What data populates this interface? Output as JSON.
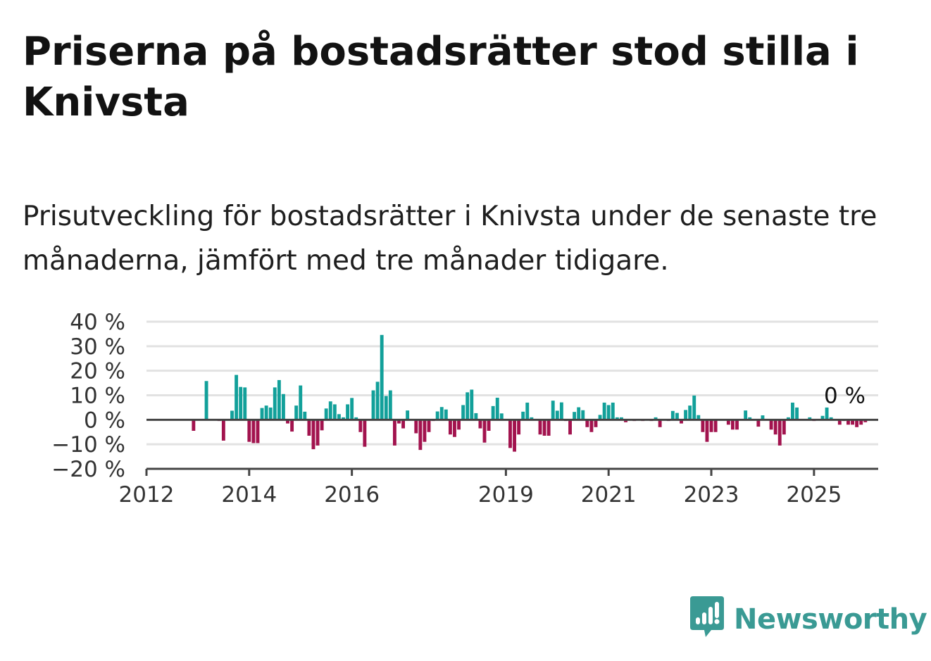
{
  "title": "Priserna på bostadsrätter stod stilla i Knivsta",
  "subtitle": "Prisutveckling för bostadsrätter i Knivsta under de senaste tre månaderna, jämfört med tre månader tidigare.",
  "brand": {
    "name": "Newsworthy",
    "icon": "newsworthy-logo-icon",
    "color": "#3a9a94"
  },
  "colors": {
    "positive": "#12a09a",
    "negative": "#a2134e",
    "grid": "#e2e2e2",
    "axis": "#444444"
  },
  "chart_data": {
    "type": "bar",
    "x_type": "month",
    "x_start": "2012-01",
    "x_end": "2026-04",
    "xticks": [
      "2012",
      "2014",
      "2016",
      "2019",
      "2021",
      "2023",
      "2025"
    ],
    "ylim": [
      -20,
      40
    ],
    "yticks": [
      40,
      30,
      20,
      10,
      0,
      -10,
      -20
    ],
    "ytick_labels": [
      "40 %",
      "30 %",
      "20 %",
      "10 %",
      "0 %",
      "−10 %",
      "−20 %"
    ],
    "end_label": "0 %",
    "grid": true,
    "legend": "none",
    "series": [
      {
        "start": "2012-12",
        "values": [
          -4.5,
          0,
          0,
          15.8,
          0,
          0,
          -0.5,
          -8.5,
          0,
          3.7,
          18.3,
          13.4,
          13.2,
          -9,
          -9.5,
          -9.5,
          4.8,
          5.8,
          5,
          13.2,
          16.2,
          10.5,
          -1.5,
          -4.8,
          5.8,
          14,
          3.3,
          -6.5,
          -12,
          -10.5,
          -4.3,
          4.6,
          7.5,
          6.3,
          2.3,
          1,
          6.3,
          8.9,
          1,
          -5,
          -11,
          0,
          12,
          15.5,
          34.6,
          9.7,
          12,
          -10.5,
          -1.5,
          -3.5,
          3.8,
          0,
          -5.5,
          -12.3,
          -9,
          -5,
          -0.5,
          3.4,
          5.2,
          4.2,
          -6,
          -7,
          -4,
          6,
          11.2,
          12.3,
          2.7,
          -3.5,
          -9.3,
          -4.5,
          5.6,
          9,
          2.6,
          0,
          -11.5,
          -13,
          -6,
          3.3,
          7,
          1,
          0,
          -6,
          -6.5,
          -6.5,
          7.8,
          3.7,
          7.1,
          -0.5,
          -6,
          3.2,
          5.1,
          3.9,
          -3,
          -5,
          -3,
          2,
          7,
          6,
          7,
          1,
          1,
          -1,
          0,
          -0.5,
          0,
          -0.5,
          0,
          -0.5,
          1,
          -3,
          0,
          -0.5,
          3.6,
          2.8,
          -1.5,
          4,
          5.8,
          9.9,
          1.9,
          -5,
          -9,
          -5,
          -5,
          0,
          0,
          -2,
          -4,
          -4,
          0,
          3.8,
          1,
          0,
          -2.8,
          1.8,
          0,
          -4,
          -6,
          -10.5,
          -6,
          1,
          7,
          5,
          0,
          0,
          1,
          -0.5,
          0,
          1.6,
          5,
          1,
          0,
          -2,
          -0.5,
          -2,
          -2,
          -3,
          -2,
          -1,
          0
        ]
      }
    ]
  }
}
